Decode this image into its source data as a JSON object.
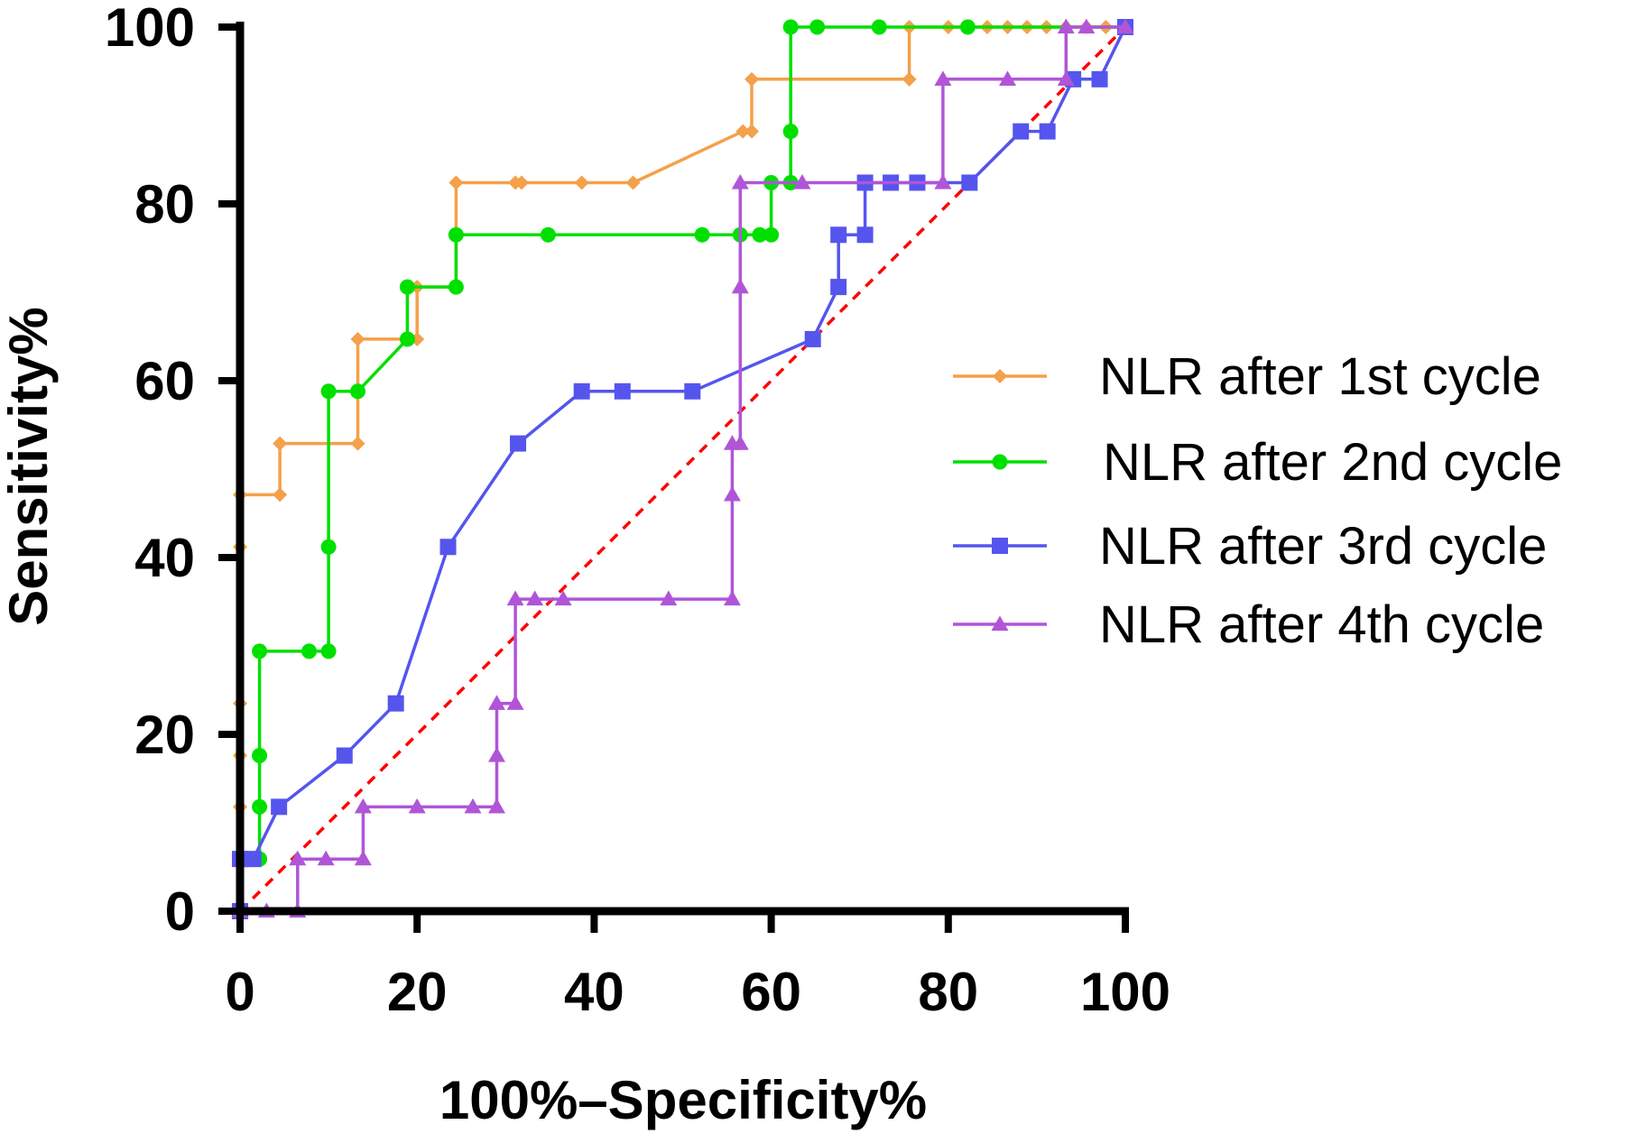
{
  "chart_data": {
    "type": "line",
    "xlabel": "100%–Specificity%",
    "ylabel": "Sensitivity%",
    "xlim": [
      0,
      100
    ],
    "ylim": [
      0,
      100
    ],
    "x_ticks": [
      "0",
      "20",
      "40",
      "60",
      "80",
      "100"
    ],
    "y_ticks": [
      "0",
      "20",
      "40",
      "60",
      "80",
      "100"
    ],
    "grid": false,
    "legend_position": "right",
    "reference_line": {
      "x": [
        0,
        100
      ],
      "y": [
        0,
        100
      ],
      "color": "#ff0000",
      "style": "dashed"
    },
    "series": [
      {
        "name": "NLR after 1st cycle",
        "color": "#f5a04a",
        "marker": "diamond",
        "points": [
          [
            0,
            0
          ],
          [
            0,
            5.9
          ],
          [
            0,
            11.8
          ],
          [
            0,
            17.6
          ],
          [
            0,
            23.5
          ],
          [
            0,
            41.2
          ],
          [
            0,
            47.1
          ],
          [
            4.5,
            47.1
          ],
          [
            4.5,
            52.9
          ],
          [
            13.3,
            52.9
          ],
          [
            13.3,
            64.7
          ],
          [
            20,
            64.7
          ],
          [
            20,
            70.6
          ],
          [
            24.4,
            70.6
          ],
          [
            24.4,
            82.4
          ],
          [
            31.1,
            82.4
          ],
          [
            31.8,
            82.4
          ],
          [
            38.6,
            82.4
          ],
          [
            44.4,
            82.4
          ],
          [
            56.8,
            88.2
          ],
          [
            57.8,
            88.2
          ],
          [
            57.8,
            94.1
          ],
          [
            75.6,
            94.1
          ],
          [
            75.6,
            100
          ],
          [
            80,
            100
          ],
          [
            82.2,
            100
          ],
          [
            84.4,
            100
          ],
          [
            86.7,
            100
          ],
          [
            88.9,
            100
          ],
          [
            91.1,
            100
          ],
          [
            93.3,
            100
          ],
          [
            95.6,
            100
          ],
          [
            97.8,
            100
          ],
          [
            100,
            100
          ]
        ]
      },
      {
        "name": "NLR after 2nd cycle",
        "color": "#00e000",
        "marker": "circle",
        "points": [
          [
            0,
            0
          ],
          [
            0,
            5.9
          ],
          [
            2.2,
            5.9
          ],
          [
            2.2,
            11.8
          ],
          [
            2.2,
            17.6
          ],
          [
            2.2,
            29.4
          ],
          [
            7.8,
            29.4
          ],
          [
            10,
            29.4
          ],
          [
            10,
            41.2
          ],
          [
            10,
            58.8
          ],
          [
            13.3,
            58.8
          ],
          [
            18.9,
            64.7
          ],
          [
            18.9,
            70.6
          ],
          [
            24.4,
            70.6
          ],
          [
            24.4,
            76.5
          ],
          [
            34.8,
            76.5
          ],
          [
            52.2,
            76.5
          ],
          [
            56.5,
            76.5
          ],
          [
            58.7,
            76.5
          ],
          [
            60,
            76.5
          ],
          [
            60,
            82.4
          ],
          [
            62.2,
            82.4
          ],
          [
            62.2,
            88.2
          ],
          [
            62.2,
            100
          ],
          [
            65.2,
            100
          ],
          [
            72.2,
            100
          ],
          [
            82.2,
            100
          ],
          [
            100,
            100
          ]
        ]
      },
      {
        "name": "NLR after 3rd cycle",
        "color": "#5555ee",
        "marker": "square",
        "points": [
          [
            0,
            0
          ],
          [
            0,
            5.9
          ],
          [
            1.5,
            5.9
          ],
          [
            4.4,
            11.8
          ],
          [
            11.8,
            17.6
          ],
          [
            17.6,
            23.5
          ],
          [
            23.5,
            41.2
          ],
          [
            31.4,
            52.9
          ],
          [
            38.6,
            58.8
          ],
          [
            43.2,
            58.8
          ],
          [
            51.1,
            58.8
          ],
          [
            64.7,
            64.7
          ],
          [
            67.6,
            70.6
          ],
          [
            67.6,
            76.5
          ],
          [
            70.6,
            76.5
          ],
          [
            70.6,
            82.4
          ],
          [
            73.5,
            82.4
          ],
          [
            76.5,
            82.4
          ],
          [
            82.4,
            82.4
          ],
          [
            88.2,
            88.2
          ],
          [
            91.2,
            88.2
          ],
          [
            94.1,
            94.1
          ],
          [
            97.1,
            94.1
          ],
          [
            100,
            100
          ]
        ]
      },
      {
        "name": "NLR after 4th cycle",
        "color": "#b055d8",
        "marker": "triangle",
        "points": [
          [
            0,
            0
          ],
          [
            3,
            0
          ],
          [
            6.5,
            0
          ],
          [
            6.5,
            5.9
          ],
          [
            9.7,
            5.9
          ],
          [
            13.9,
            5.9
          ],
          [
            13.9,
            11.8
          ],
          [
            20,
            11.8
          ],
          [
            26.3,
            11.8
          ],
          [
            29,
            11.8
          ],
          [
            29,
            17.6
          ],
          [
            29,
            23.5
          ],
          [
            31.1,
            23.5
          ],
          [
            31.1,
            35.3
          ],
          [
            33.3,
            35.3
          ],
          [
            36.5,
            35.3
          ],
          [
            48.4,
            35.3
          ],
          [
            55.6,
            35.3
          ],
          [
            55.6,
            47.1
          ],
          [
            55.6,
            52.9
          ],
          [
            56.5,
            52.9
          ],
          [
            56.5,
            70.6
          ],
          [
            56.5,
            82.4
          ],
          [
            63.5,
            82.4
          ],
          [
            79.4,
            82.4
          ],
          [
            79.4,
            94.1
          ],
          [
            86.7,
            94.1
          ],
          [
            93.3,
            94.1
          ],
          [
            93.3,
            100
          ],
          [
            95.6,
            100
          ],
          [
            100,
            100
          ]
        ]
      }
    ]
  }
}
